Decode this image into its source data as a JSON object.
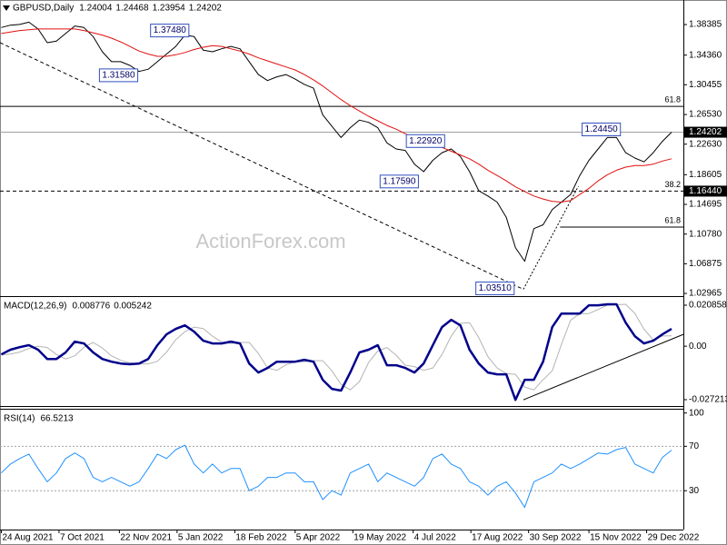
{
  "chart_data": [
    {
      "type": "line",
      "title": "GBPUSD,Daily",
      "header_values": [
        1.24004,
        1.24468,
        1.23954,
        1.24202
      ],
      "watermark": "ActionForex.com",
      "x": [
        "2021-08-24",
        "2021-08-31",
        "2021-09-07",
        "2021-09-14",
        "2021-09-21",
        "2021-09-28",
        "2021-10-05",
        "2021-10-12",
        "2021-10-19",
        "2021-10-26",
        "2021-11-02",
        "2021-11-09",
        "2021-11-16",
        "2021-11-23",
        "2021-11-30",
        "2021-12-07",
        "2021-12-14",
        "2021-12-21",
        "2021-12-28",
        "2022-01-04",
        "2022-01-11",
        "2022-01-18",
        "2022-01-25",
        "2022-02-01",
        "2022-02-08",
        "2022-02-15",
        "2022-02-22",
        "2022-03-01",
        "2022-03-08",
        "2022-03-15",
        "2022-03-22",
        "2022-03-29",
        "2022-04-05",
        "2022-04-12",
        "2022-04-19",
        "2022-04-26",
        "2022-05-03",
        "2022-05-10",
        "2022-05-17",
        "2022-05-24",
        "2022-05-31",
        "2022-06-07",
        "2022-06-14",
        "2022-06-21",
        "2022-06-28",
        "2022-07-05",
        "2022-07-12",
        "2022-07-19",
        "2022-07-26",
        "2022-08-02",
        "2022-08-09",
        "2022-08-16",
        "2022-08-23",
        "2022-08-30",
        "2022-09-06",
        "2022-09-13",
        "2022-09-20",
        "2022-09-27",
        "2022-10-04",
        "2022-10-11",
        "2022-10-18",
        "2022-10-25",
        "2022-11-01",
        "2022-11-08",
        "2022-11-15",
        "2022-11-22",
        "2022-11-29",
        "2022-12-06",
        "2022-12-13",
        "2022-12-20",
        "2022-12-27",
        "2023-01-03",
        "2023-01-10",
        "2023-01-17"
      ],
      "series": [
        {
          "color": "#000000",
          "values": [
            1.38,
            1.383,
            1.384,
            1.387,
            1.378,
            1.36,
            1.362,
            1.372,
            1.382,
            1.38,
            1.368,
            1.348,
            1.335,
            1.335,
            1.33,
            1.322,
            1.325,
            1.335,
            1.345,
            1.355,
            1.37,
            1.368,
            1.35,
            1.348,
            1.352,
            1.355,
            1.352,
            1.335,
            1.318,
            1.31,
            1.315,
            1.318,
            1.312,
            1.305,
            1.3,
            1.265,
            1.25,
            1.235,
            1.248,
            1.258,
            1.255,
            1.248,
            1.228,
            1.22,
            1.218,
            1.2,
            1.19,
            1.205,
            1.215,
            1.22,
            1.21,
            1.19,
            1.165,
            1.158,
            1.15,
            1.13,
            1.09,
            1.072,
            1.115,
            1.12,
            1.14,
            1.15,
            1.16,
            1.185,
            1.205,
            1.22,
            1.235,
            1.235,
            1.215,
            1.208,
            1.203,
            1.215,
            1.23,
            1.24202
          ]
        },
        {
          "color": "#e01010",
          "values": [
            1.372,
            1.374,
            1.376,
            1.377,
            1.378,
            1.378,
            1.378,
            1.378,
            1.378,
            1.376,
            1.373,
            1.37,
            1.366,
            1.361,
            1.355,
            1.349,
            1.345,
            1.342,
            1.342,
            1.344,
            1.347,
            1.351,
            1.354,
            1.356,
            1.355,
            1.352,
            1.349,
            1.345,
            1.34,
            1.336,
            1.332,
            1.328,
            1.324,
            1.318,
            1.311,
            1.303,
            1.294,
            1.285,
            1.277,
            1.27,
            1.263,
            1.257,
            1.251,
            1.246,
            1.24,
            1.234,
            1.229,
            1.226,
            1.222,
            1.217,
            1.212,
            1.207,
            1.2,
            1.192,
            1.185,
            1.178,
            1.17,
            1.164,
            1.158,
            1.154,
            1.151,
            1.15,
            1.152,
            1.16,
            1.168,
            1.178,
            1.186,
            1.192,
            1.196,
            1.198,
            1.198,
            1.2,
            1.204,
            1.207
          ]
        }
      ],
      "xlim": [
        "2021-08-23",
        "2023-01-26"
      ],
      "ylim": [
        1.0261,
        1.4162
      ],
      "yticks": [
        1.38385,
        {
          "value": 1.3436,
          "label": "1.34360"
        },
        1.30455,
        {
          "value": 1.2653,
          "label": "1.26530"
        },
        {
          "value": 1.2263,
          "label": "1.22630"
        },
        1.18605,
        1.14695,
        {
          "value": 1.1078,
          "label": "1.10780"
        },
        1.06875,
        1.02965
      ],
      "hlines": [
        {
          "y": 1.276,
          "color": "#000000",
          "style": "solid",
          "text": "61.8"
        },
        {
          "y": 1.24202,
          "color": "#a0a0a0",
          "style": "solid",
          "tag": true
        },
        {
          "y": {
            "value": 1.1644,
            "label": "1.16440"
          },
          "color": "#000000",
          "style": "dashed",
          "text": "38.2"
        },
        {
          "y": 1.117,
          "x_from": "2022-10-24",
          "color": "#000000",
          "style": "solid",
          "text": "61.8"
        }
      ],
      "annotations": [
        {
          "text": "1.37480",
          "x": "2022-01-14",
          "y": 1.3748
        },
        {
          "text": "1.31580",
          "x": "2021-12-06",
          "y": 1.3158
        },
        {
          "text": "1.22920",
          "x": "2022-07-28",
          "y": 1.2292
        },
        {
          "text": "1.17590",
          "x": "2022-07-08",
          "y": 1.1759
        },
        {
          "text": "1.24450",
          "x": "2022-12-09",
          "y": 1.2445
        },
        {
          "text": "1.03510",
          "x": "2022-09-19",
          "y": 1.0351
        }
      ],
      "trendlines": [
        {
          "x": [
            "2021-08-23",
            "2022-09-26"
          ],
          "y": [
            1.36,
            1.0351
          ],
          "style": "dashed",
          "color": "#000000"
        },
        {
          "x": [
            "2022-09-26",
            "2022-11-07"
          ],
          "y": [
            1.0351,
            1.1709
          ],
          "style": "dotted",
          "color": "#000000"
        }
      ]
    },
    {
      "type": "line",
      "title": "MACD(12,26,9)",
      "header_values": [
        0.008776,
        0.005242
      ],
      "x": [
        "2021-08-24",
        "2021-08-31",
        "2021-09-07",
        "2021-09-14",
        "2021-09-21",
        "2021-09-28",
        "2021-10-05",
        "2021-10-12",
        "2021-10-19",
        "2021-10-26",
        "2021-11-02",
        "2021-11-09",
        "2021-11-16",
        "2021-11-23",
        "2021-11-30",
        "2021-12-07",
        "2021-12-14",
        "2021-12-21",
        "2021-12-28",
        "2022-01-04",
        "2022-01-11",
        "2022-01-18",
        "2022-01-25",
        "2022-02-01",
        "2022-02-08",
        "2022-02-15",
        "2022-02-22",
        "2022-03-01",
        "2022-03-08",
        "2022-03-15",
        "2022-03-22",
        "2022-03-29",
        "2022-04-05",
        "2022-04-12",
        "2022-04-19",
        "2022-04-26",
        "2022-05-03",
        "2022-05-10",
        "2022-05-17",
        "2022-05-24",
        "2022-05-31",
        "2022-06-07",
        "2022-06-14",
        "2022-06-21",
        "2022-06-28",
        "2022-07-05",
        "2022-07-12",
        "2022-07-19",
        "2022-07-26",
        "2022-08-02",
        "2022-08-09",
        "2022-08-16",
        "2022-08-23",
        "2022-08-30",
        "2022-09-06",
        "2022-09-13",
        "2022-09-20",
        "2022-09-27",
        "2022-10-04",
        "2022-10-11",
        "2022-10-18",
        "2022-10-25",
        "2022-11-01",
        "2022-11-08",
        "2022-11-15",
        "2022-11-22",
        "2022-11-29",
        "2022-12-06",
        "2022-12-13",
        "2022-12-20",
        "2022-12-27",
        "2023-01-03",
        "2023-01-10",
        "2023-01-17"
      ],
      "series": [
        {
          "color": "#b4b4b4",
          "values": [
            -0.0045,
            -0.004,
            -0.003,
            -0.0012,
            0.0,
            -0.0007,
            -0.0042,
            -0.0065,
            -0.0049,
            -0.0005,
            0.0019,
            -0.0009,
            -0.0049,
            -0.0072,
            -0.0084,
            -0.009,
            -0.009,
            -0.0077,
            -0.003,
            0.0033,
            0.0074,
            0.0097,
            0.009,
            0.0051,
            0.0021,
            0.0014,
            0.0019,
            0.0019,
            -0.0037,
            -0.0111,
            -0.0123,
            -0.0095,
            -0.0079,
            -0.0079,
            -0.0074,
            -0.0074,
            -0.0125,
            -0.0194,
            -0.0222,
            -0.018,
            -0.0083,
            -0.0025,
            -0.0007,
            -0.0046,
            -0.0097,
            -0.0104,
            -0.0123,
            -0.0111,
            -0.0042,
            0.0051,
            0.0116,
            0.012,
            0.0044,
            -0.0053,
            -0.0111,
            -0.0139,
            -0.0143,
            -0.0208,
            -0.0222,
            -0.0171,
            -0.0125,
            0.0009,
            0.0132,
            0.0166,
            0.0166,
            0.0187,
            0.0208,
            0.0211,
            0.0213,
            0.0167,
            0.0086,
            0.0033,
            0.0052,
            0.005242
          ]
        },
        {
          "color": "#00008b",
          "values": [
            -0.0042,
            -0.0018,
            -0.0005,
            0.0005,
            -0.0018,
            -0.0065,
            -0.0065,
            -0.0032,
            0.0023,
            0.0014,
            -0.0032,
            -0.0065,
            -0.0079,
            -0.0088,
            -0.0092,
            -0.0088,
            -0.0065,
            0.0005,
            0.006,
            0.0088,
            0.0106,
            0.0074,
            0.0028,
            0.0014,
            0.0014,
            0.0023,
            0.0014,
            -0.0088,
            -0.0134,
            -0.0111,
            -0.0079,
            -0.0079,
            -0.0079,
            -0.0069,
            -0.0079,
            -0.0171,
            -0.0217,
            -0.0226,
            -0.0134,
            -0.0032,
            -0.0018,
            0.0005,
            -0.0097,
            -0.0097,
            -0.0111,
            -0.0134,
            -0.0088,
            0.0005,
            0.0097,
            0.0134,
            0.0106,
            -0.0018,
            -0.0088,
            -0.0134,
            -0.0143,
            -0.0143,
            -0.0273,
            -0.0171,
            -0.0171,
            -0.0079,
            0.0097,
            0.0166,
            0.0166,
            0.0166,
            0.0208,
            0.0208,
            0.0213,
            0.0213,
            0.012,
            0.0051,
            0.0014,
            0.0028,
            0.006,
            0.008776
          ]
        }
      ],
      "xlim": [
        "2021-08-23",
        "2023-01-26"
      ],
      "ylim": [
        -0.030447,
        0.025016
      ],
      "yticks": [
        0.020858,
        {
          "value": 0,
          "label": "0.00"
        },
        -0.027213
      ],
      "trendlines": [
        {
          "x": [
            "2022-09-26",
            "2023-01-26"
          ],
          "y": [
            -0.0273,
            0.006
          ],
          "style": "solid",
          "color": "#000000"
        }
      ]
    },
    {
      "type": "line",
      "title": "RSI(14)",
      "header_values": [
        66.5213
      ],
      "x": [
        "2021-08-24",
        "2021-08-31",
        "2021-09-07",
        "2021-09-14",
        "2021-09-21",
        "2021-09-28",
        "2021-10-05",
        "2021-10-12",
        "2021-10-19",
        "2021-10-26",
        "2021-11-02",
        "2021-11-09",
        "2021-11-16",
        "2021-11-23",
        "2021-11-30",
        "2021-12-07",
        "2021-12-14",
        "2021-12-21",
        "2021-12-28",
        "2022-01-04",
        "2022-01-11",
        "2022-01-18",
        "2022-01-25",
        "2022-02-01",
        "2022-02-08",
        "2022-02-15",
        "2022-02-22",
        "2022-03-01",
        "2022-03-08",
        "2022-03-15",
        "2022-03-22",
        "2022-03-29",
        "2022-04-05",
        "2022-04-12",
        "2022-04-19",
        "2022-04-26",
        "2022-05-03",
        "2022-05-10",
        "2022-05-17",
        "2022-05-24",
        "2022-05-31",
        "2022-06-07",
        "2022-06-14",
        "2022-06-21",
        "2022-06-28",
        "2022-07-05",
        "2022-07-12",
        "2022-07-19",
        "2022-07-26",
        "2022-08-02",
        "2022-08-09",
        "2022-08-16",
        "2022-08-23",
        "2022-08-30",
        "2022-09-06",
        "2022-09-13",
        "2022-09-20",
        "2022-09-27",
        "2022-10-04",
        "2022-10-11",
        "2022-10-18",
        "2022-10-25",
        "2022-11-01",
        "2022-11-08",
        "2022-11-15",
        "2022-11-22",
        "2022-11-29",
        "2022-12-06",
        "2022-12-13",
        "2022-12-20",
        "2022-12-27",
        "2023-01-03",
        "2023-01-10",
        "2023-01-17"
      ],
      "series": [
        {
          "color": "#1e90ff",
          "values": [
            46,
            54,
            59,
            63,
            50,
            38,
            46,
            59,
            64,
            59,
            42,
            38,
            42,
            38,
            34,
            38,
            50,
            63,
            59,
            67,
            71,
            54,
            46,
            54,
            46,
            50,
            50,
            30,
            34,
            42,
            42,
            46,
            46,
            38,
            38,
            22,
            30,
            26,
            46,
            50,
            54,
            38,
            46,
            42,
            38,
            34,
            42,
            59,
            63,
            54,
            50,
            38,
            34,
            26,
            34,
            38,
            28,
            15,
            38,
            42,
            46,
            54,
            50,
            54,
            59,
            64,
            63,
            67,
            69,
            54,
            50,
            46,
            60,
            66.5213
          ]
        }
      ],
      "xlim": [
        "2021-08-23",
        "2023-01-26"
      ],
      "ylim": [
        -5,
        103
      ],
      "yticks": [
        100,
        70,
        30
      ],
      "levels": [
        70,
        30
      ],
      "xticks": [
        {
          "value": "2021-08-24",
          "label": "24 Aug 2021"
        },
        {
          "value": "2021-10-07",
          "label": "7 Oct 2021"
        },
        {
          "value": "2021-11-22",
          "label": "22 Nov 2021"
        },
        {
          "value": "2022-01-05",
          "label": "5 Jan 2022"
        },
        {
          "value": "2022-02-18",
          "label": "18 Feb 2022"
        },
        {
          "value": "2022-04-05",
          "label": "5 Apr 2022"
        },
        {
          "value": "2022-05-19",
          "label": "19 May 2022"
        },
        {
          "value": "2022-07-04",
          "label": "4 Jul 2022"
        },
        {
          "value": "2022-08-17",
          "label": "17 Aug 2022"
        },
        {
          "value": "2022-09-30",
          "label": "30 Sep 2022"
        },
        {
          "value": "2022-11-15",
          "label": "15 Nov 2022"
        },
        {
          "value": "2022-12-29",
          "label": "29 Dec 2022"
        }
      ]
    }
  ]
}
